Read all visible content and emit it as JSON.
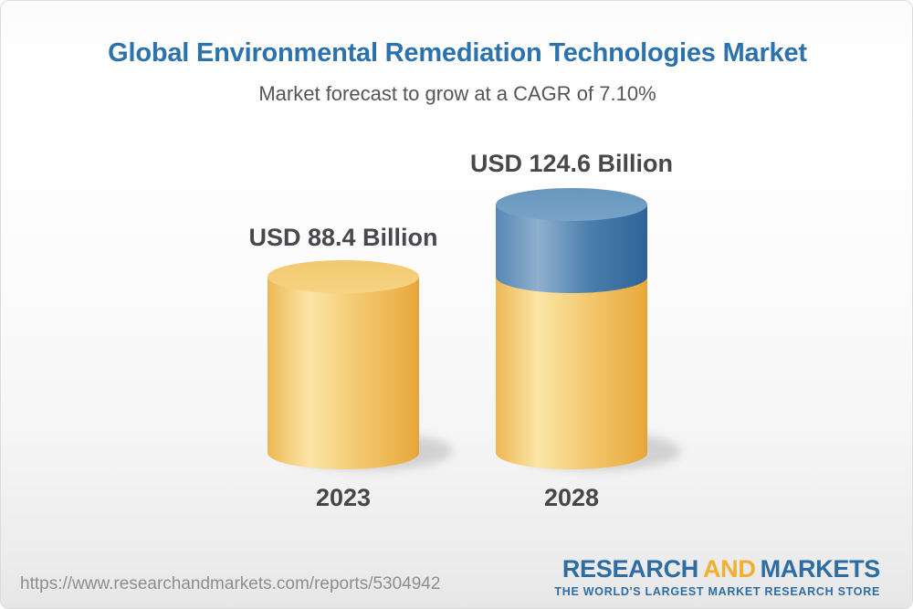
{
  "header": {
    "title": "Global Environmental Remediation Technologies Market",
    "subtitle": "Market forecast to grow at a CAGR of 7.10%"
  },
  "chart_data": {
    "type": "bar",
    "style": "3d-cylinder",
    "categories": [
      "2023",
      "2028"
    ],
    "values": [
      88.4,
      124.6
    ],
    "unit": "USD Billion",
    "value_labels": [
      "USD 88.4 Billion",
      "USD 124.6 Billion"
    ],
    "cagr_text": "7.10%",
    "colors": {
      "base_gold_dark": "#EDB855",
      "base_gold_light": "#FBE5A7",
      "base_gold_edge": "#E9AA3E",
      "gold_top": "#F4CD78",
      "growth_blue_dark": "#30669A",
      "growth_blue_light": "#8FB0CE",
      "growth_blue_mid": "#5687B4",
      "blue_top": "#6F9DC4"
    },
    "legend_position": "none",
    "grid": false
  },
  "footer": {
    "source_url": "https://www.researchandmarkets.com/reports/5304942",
    "logo": {
      "part1": "RESEARCH",
      "part2": "AND",
      "part3": "MARKETS",
      "tagline": "THE WORLD'S LARGEST MARKET RESEARCH STORE"
    }
  }
}
